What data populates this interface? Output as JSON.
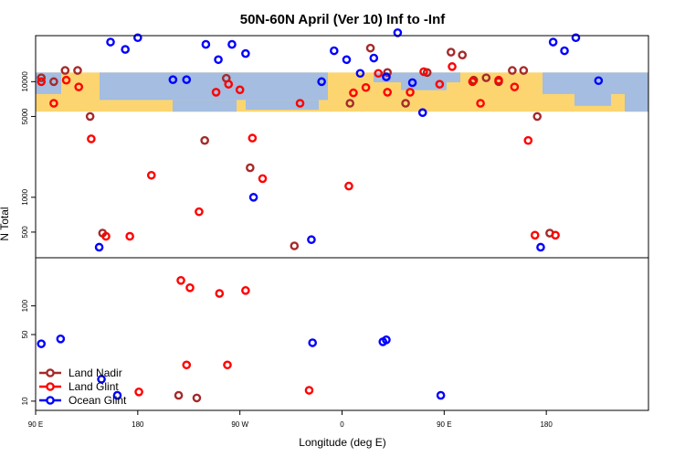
{
  "chart_data": {
    "type": "scatter",
    "title": "50N-60N April (Ver 10)   Inf to -Inf",
    "xlabel": "Longitude (deg E)",
    "ylabel": "N Total",
    "xlim": [
      -90,
      180
    ],
    "x_ticks": [
      {
        "value": -90,
        "label": "90 E"
      },
      {
        "value": -45,
        "label": "180"
      },
      {
        "value": 0,
        "label": "90 W"
      },
      {
        "value": 45,
        "label": "0"
      },
      {
        "value": 90,
        "label": "90 E"
      },
      {
        "value": 135,
        "label": "180"
      }
    ],
    "x_ticks_note": "Tick labels are printed as shown; longitudes wrap around the globe.",
    "band_colors": {
      "sea": "#a4bde0",
      "land": "#fcd570",
      "frame": "#000000"
    },
    "panels": [
      {
        "name": "upper",
        "scale": "log",
        "ylim": [
          300,
          25000
        ],
        "y_ticks": [
          500,
          1000,
          5000,
          10000
        ],
        "band_range": [
          5500,
          12000
        ],
        "series": [
          {
            "name": "Land Nadir",
            "color": "#a52a2a",
            "points": [
              [
                -87.5,
                10800
              ],
              [
                -82,
                10000
              ],
              [
                -77,
                12500
              ],
              [
                -71.5,
                12500
              ],
              [
                -66,
                5000
              ],
              [
                -60.5,
                490
              ],
              [
                -15.5,
                3100
              ],
              [
                -6,
                10700
              ],
              [
                4.5,
                1800
              ],
              [
                24,
                380
              ],
              [
                48.5,
                6500
              ],
              [
                57.5,
                19500
              ],
              [
                65,
                12000
              ],
              [
                73,
                6500
              ],
              [
                82.5,
                12000
              ],
              [
                93,
                18000
              ],
              [
                98,
                17000
              ],
              [
                103,
                10300
              ],
              [
                108.5,
                10800
              ],
              [
                114,
                10000
              ],
              [
                120,
                12500
              ],
              [
                125,
                12500
              ],
              [
                131,
                5000
              ],
              [
                136.5,
                490
              ]
            ]
          },
          {
            "name": "Land Glint",
            "color": "#ff0000",
            "points": [
              [
                -87.5,
                10000
              ],
              [
                -82,
                6500
              ],
              [
                -76.5,
                10300
              ],
              [
                -71,
                9000
              ],
              [
                -65.5,
                3200
              ],
              [
                -59,
                460
              ],
              [
                -48.5,
                460
              ],
              [
                -39,
                1550
              ],
              [
                -18,
                750
              ],
              [
                -10.5,
                8100
              ],
              [
                -5,
                9500
              ],
              [
                0,
                8500
              ],
              [
                5.5,
                3250
              ],
              [
                10,
                1450
              ],
              [
                26.5,
                6500
              ],
              [
                48,
                1250
              ],
              [
                50,
                8000
              ],
              [
                55.5,
                8900
              ],
              [
                61,
                11800
              ],
              [
                65,
                8100
              ],
              [
                75,
                8100
              ],
              [
                81,
                12200
              ],
              [
                88,
                9500
              ],
              [
                93.5,
                13500
              ],
              [
                102.5,
                10000
              ],
              [
                106,
                6500
              ],
              [
                114,
                10300
              ],
              [
                121,
                9000
              ],
              [
                127,
                3100
              ],
              [
                130,
                470
              ],
              [
                139,
                470
              ]
            ]
          },
          {
            "name": "Ocean Glint",
            "color": "#0000ff",
            "points": [
              [
                -62,
                370
              ],
              [
                -57,
                22000
              ],
              [
                -50.5,
                19000
              ],
              [
                -45,
                24000
              ],
              [
                -29.5,
                10400
              ],
              [
                -23.5,
                10400
              ],
              [
                -15,
                21000
              ],
              [
                -9.5,
                15500
              ],
              [
                -3.5,
                21000
              ],
              [
                2.5,
                17500
              ],
              [
                6,
                1000
              ],
              [
                31.5,
                430
              ],
              [
                36,
                10000
              ],
              [
                41.5,
                18500
              ],
              [
                47,
                15500
              ],
              [
                53,
                11800
              ],
              [
                59,
                16000
              ],
              [
                64.5,
                11000
              ],
              [
                69.5,
                26500
              ],
              [
                76,
                9800
              ],
              [
                80.5,
                5400
              ],
              [
                132.5,
                370
              ],
              [
                138,
                22000
              ],
              [
                143,
                18500
              ],
              [
                148,
                24000
              ],
              [
                158,
                10200
              ]
            ]
          }
        ]
      },
      {
        "name": "lower",
        "scale": "log",
        "ylim": [
          8,
          320
        ],
        "y_ticks": [
          10,
          50,
          100
        ],
        "series": [
          {
            "name": "Land Nadir",
            "color": "#a52a2a",
            "points": [
              [
                -27,
                11.5
              ],
              [
                -19,
                10.8
              ]
            ]
          },
          {
            "name": "Land Glint",
            "color": "#ff0000",
            "points": [
              [
                -44.5,
                12.5
              ],
              [
                -26,
                185
              ],
              [
                -23.5,
                24
              ],
              [
                -22,
                155
              ],
              [
                -9,
                135
              ],
              [
                -5.5,
                24
              ],
              [
                2.5,
                145
              ],
              [
                30.5,
                13
              ]
            ]
          },
          {
            "name": "Ocean Glint",
            "color": "#0000ff",
            "points": [
              [
                -87.5,
                40
              ],
              [
                -79,
                45
              ],
              [
                -61,
                17
              ],
              [
                -54,
                11.5
              ],
              [
                32,
                41
              ],
              [
                63,
                42
              ],
              [
                64.5,
                44
              ],
              [
                88.5,
                11.5
              ]
            ]
          }
        ]
      }
    ],
    "legend": {
      "placement": "bottom-left of lower panel",
      "entries": [
        {
          "label": "Land Nadir",
          "color": "#a52a2a"
        },
        {
          "label": "Land Glint",
          "color": "#ff0000"
        },
        {
          "label": "Ocean Glint",
          "color": "#0000ff"
        }
      ]
    }
  }
}
